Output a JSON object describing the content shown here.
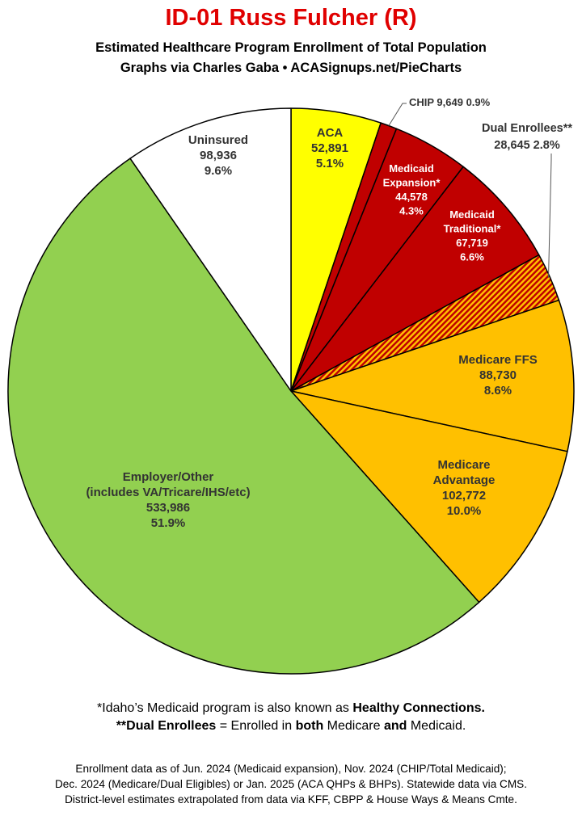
{
  "header": {
    "title": "ID-01 Russ Fulcher (R)",
    "subtitle_line1": "Estimated Healthcare Program Enrollment of Total Population",
    "subtitle_line2": "Graphs via Charles Gaba  •  ACASignups.net/PieCharts"
  },
  "chart_data": {
    "type": "pie",
    "start": "12 o'clock, clockwise",
    "slices": [
      {
        "label": [
          "ACA"
        ],
        "value": 52891,
        "value_text": "52,891",
        "percent": 5.1,
        "percent_text": "5.1%",
        "color": "#ffff00",
        "text_color": "#333333"
      },
      {
        "label": [
          "CHIP"
        ],
        "value": 9649,
        "value_text": "9,649",
        "percent": 0.9,
        "percent_text": "0.9%",
        "color": "#c00000",
        "text_color": "#333333",
        "callout": true
      },
      {
        "label": [
          "Medicaid",
          "Expansion*"
        ],
        "value": 44578,
        "value_text": "44,578",
        "percent": 4.3,
        "percent_text": "4.3%",
        "color": "#c00000",
        "text_color": "#ffffff"
      },
      {
        "label": [
          "Medicaid",
          "Traditional*"
        ],
        "value": 67719,
        "value_text": "67,719",
        "percent": 6.6,
        "percent_text": "6.6%",
        "color": "#c00000",
        "text_color": "#ffffff"
      },
      {
        "label": [
          "Dual Enrollees**"
        ],
        "value": 28645,
        "value_text": "28,645",
        "percent": 2.8,
        "percent_text": "2.8%",
        "color": "#c00000",
        "hatch": "#ffc000",
        "text_color": "#333333",
        "callout": true
      },
      {
        "label": [
          "Medicare FFS"
        ],
        "value": 88730,
        "value_text": "88,730",
        "percent": 8.6,
        "percent_text": "8.6%",
        "color": "#ffc000",
        "text_color": "#333333"
      },
      {
        "label": [
          "Medicare",
          "Advantage"
        ],
        "value": 102772,
        "value_text": "102,772",
        "percent": 10.0,
        "percent_text": "10.0%",
        "color": "#ffc000",
        "text_color": "#333333"
      },
      {
        "label": [
          "Employer/Other",
          "(includes VA/Tricare/IHS/etc)"
        ],
        "value": 533986,
        "value_text": "533,986",
        "percent": 51.9,
        "percent_text": "51.9%",
        "color": "#92d050",
        "text_color": "#333333"
      },
      {
        "label": [
          "Uninsured"
        ],
        "value": 98936,
        "value_text": "98,936",
        "percent": 9.6,
        "percent_text": "9.6%",
        "color": "#ffffff",
        "text_color": "#333333"
      }
    ]
  },
  "notes": {
    "note1_pre": "*Idaho’s Medicaid program is also known as ",
    "note1_bold": "Healthy Connections.",
    "note2_a": "**Dual Enrollees",
    "note2_b": " = Enrolled in ",
    "note2_c": "both",
    "note2_d": " Medicare ",
    "note2_e": "and",
    "note2_f": " Medicaid."
  },
  "sources": {
    "line1": "Enrollment data as of Jun. 2024 (Medicaid expansion), Nov. 2024 (CHIP/Total Medicaid);",
    "line2": "Dec. 2024 (Medicare/Dual Eligibles) or Jan. 2025 (ACA QHPs & BHPs). Statewide data via CMS.",
    "line3": "District-level estimates extrapolated from data via KFF, CBPP & House Ways & Means Cmte."
  }
}
